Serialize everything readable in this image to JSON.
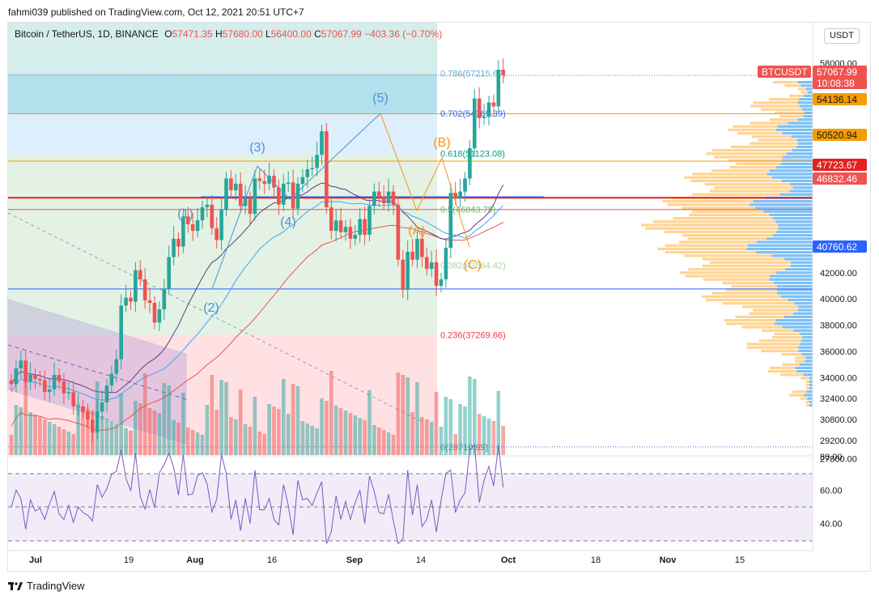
{
  "header": {
    "text": "fahmi039 published on TradingView.com, Oct 12, 2021 20:51 UTC+7"
  },
  "ticker": {
    "name": "Bitcoin / TetherUS, 1D, BINANCE",
    "o_label": "O",
    "o": "57471.35",
    "h_label": "H",
    "h": "57680.00",
    "l_label": "L",
    "l": "56400.00",
    "c_label": "C",
    "c": "57067.99",
    "change": "−403.36 (−0.70%)"
  },
  "currency_button": "USDT",
  "footer": {
    "brand": "TradingView"
  },
  "colors": {
    "up": "#26a69a",
    "down": "#ef5350",
    "fib_786": "#5fb3d6",
    "fib_702": "#2962ff",
    "fib_618": "#089981",
    "fib_236": "#f23645",
    "elliott": "#4a90d9",
    "abc": "#f7931a",
    "rsi_line": "#7e57c2",
    "ma_200": "#ef5350",
    "ma_100": "#5c3b8c",
    "ma_50": "#42a5f5"
  },
  "fib_labels": [
    {
      "text": "0.786(57215.69)",
      "price": 57215.69,
      "color": "#5fb3d6"
    },
    {
      "text": "0.702(54169.39)",
      "price": 54169.39,
      "color": "#2962ff"
    },
    {
      "text": "0.618(51123.08)",
      "price": 51123.08,
      "color": "#089981"
    },
    {
      "text": "0.5(46843.75)",
      "price": 46843.75,
      "color": "#66bb6a"
    },
    {
      "text": "0.382(42564.42)",
      "price": 42564.42,
      "color": "#a5d6a7"
    },
    {
      "text": "0.236(37269.66)",
      "price": 37269.66,
      "color": "#f23645"
    },
    {
      "text": "0(28710.99)",
      "price": 28710.99,
      "color": "#787b86"
    }
  ],
  "wave_labels": {
    "impulse": [
      "(1)",
      "(2)",
      "(3)",
      "(4)",
      "(5)"
    ],
    "corrective": [
      "(A)",
      "(B)",
      "(C)"
    ]
  },
  "price_badges": [
    {
      "text": "BTCUSDT",
      "bg": "#ef5350",
      "fg": "#ffffff"
    },
    {
      "text": "57067.99",
      "bg": "#ef5350",
      "fg": "#ffffff"
    },
    {
      "text": "10:08:38",
      "bg": "#ef5350",
      "fg": "#ffffff"
    },
    {
      "text": "54136.14",
      "bg": "#f59d00",
      "fg": "#131722"
    },
    {
      "text": "50520.94",
      "bg": "#f59d00",
      "fg": "#131722"
    },
    {
      "text": "47723.67",
      "bg": "#e62020",
      "fg": "#ffffff"
    },
    {
      "text": "46832.46",
      "bg": "#ef5350",
      "fg": "#ffffff"
    },
    {
      "text": "40760.62",
      "bg": "#2962ff",
      "fg": "#ffffff"
    }
  ],
  "chart_data": {
    "type": "candlestick",
    "symbol": "BTCUSDT",
    "interval": "1D",
    "x_ticks": [
      "Jul",
      "19",
      "Aug",
      "16",
      "Sep",
      "14",
      "Oct",
      "18",
      "Nov",
      "15"
    ],
    "y_ticks": [
      "58000.00",
      "42000.00",
      "40000.00",
      "38000.00",
      "36000.00",
      "34000.00",
      "32400.00",
      "30800.00",
      "29200.00",
      "27800.00"
    ],
    "y_range": [
      27000,
      61000
    ],
    "candles_close": [
      33500,
      34700,
      35300,
      33700,
      34200,
      33900,
      33800,
      32900,
      33100,
      34200,
      33700,
      32800,
      32900,
      31800,
      31800,
      31400,
      30800,
      29800,
      31400,
      32100,
      33400,
      34300,
      35400,
      39500,
      40100,
      39800,
      42200,
      41500,
      39900,
      39700,
      38200,
      39200,
      40800,
      43200,
      44600,
      44000,
      46300,
      45700,
      45200,
      46000,
      47000,
      47200,
      45400,
      44500,
      46800,
      49200,
      48300,
      48800,
      47100,
      47700,
      46500,
      49200,
      49000,
      48800,
      49400,
      48500,
      47200,
      48800,
      48900,
      46900,
      48800,
      49300,
      49900,
      50000,
      51000,
      52800,
      47000,
      45200,
      46000,
      45100,
      45500,
      44600,
      44900,
      46100,
      44900,
      47100,
      48200,
      47800,
      47300,
      48200,
      47200,
      43000,
      40700,
      43600,
      43000,
      44600,
      43200,
      42300,
      42800,
      41000,
      41500,
      43900,
      48100,
      47700,
      48200,
      49200,
      51500,
      55300,
      53800,
      53900,
      55000,
      54700,
      57500,
      57100
    ],
    "rsi_ticks": [
      "80.00",
      "60.00",
      "40.00"
    ],
    "rsi_levels": [
      70,
      30
    ]
  }
}
